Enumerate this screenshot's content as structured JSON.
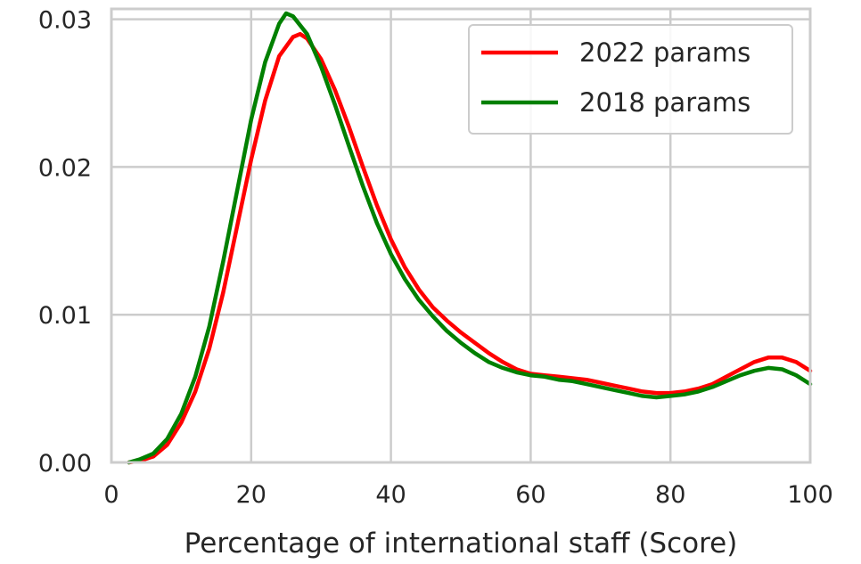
{
  "chart_data": {
    "type": "line",
    "title": "",
    "xlabel": "Percentage of international staff (Score)",
    "ylabel": "",
    "xlim": [
      0,
      100
    ],
    "ylim": [
      0,
      0.0307
    ],
    "xticks": [
      "0",
      "20",
      "40",
      "60",
      "80",
      "100"
    ],
    "yticks": [
      "0.00",
      "0.01",
      "0.02",
      "0.03"
    ],
    "grid": true,
    "legend_position": "top-right",
    "series": [
      {
        "name": "2022 params",
        "color": "#ff0000",
        "points": [
          [
            2.5,
            0.0
          ],
          [
            4,
            0.0001
          ],
          [
            6,
            0.0004
          ],
          [
            8,
            0.0012
          ],
          [
            10,
            0.0027
          ],
          [
            12,
            0.0048
          ],
          [
            14,
            0.0077
          ],
          [
            16,
            0.0115
          ],
          [
            18,
            0.016
          ],
          [
            20,
            0.0205
          ],
          [
            22,
            0.0245
          ],
          [
            24,
            0.0275
          ],
          [
            26,
            0.0288
          ],
          [
            27,
            0.029
          ],
          [
            28,
            0.0287
          ],
          [
            30,
            0.0273
          ],
          [
            32,
            0.0252
          ],
          [
            34,
            0.0227
          ],
          [
            36,
            0.02
          ],
          [
            38,
            0.0174
          ],
          [
            40,
            0.0151
          ],
          [
            42,
            0.0132
          ],
          [
            44,
            0.0117
          ],
          [
            46,
            0.0105
          ],
          [
            48,
            0.0096
          ],
          [
            50,
            0.0088
          ],
          [
            52,
            0.0081
          ],
          [
            54,
            0.0074
          ],
          [
            56,
            0.0068
          ],
          [
            58,
            0.0063
          ],
          [
            60,
            0.006
          ],
          [
            62,
            0.0059
          ],
          [
            64,
            0.0058
          ],
          [
            66,
            0.0057
          ],
          [
            68,
            0.0056
          ],
          [
            70,
            0.0054
          ],
          [
            72,
            0.0052
          ],
          [
            74,
            0.005
          ],
          [
            76,
            0.0048
          ],
          [
            78,
            0.0047
          ],
          [
            80,
            0.0047
          ],
          [
            82,
            0.0048
          ],
          [
            84,
            0.005
          ],
          [
            86,
            0.0053
          ],
          [
            88,
            0.0058
          ],
          [
            90,
            0.0063
          ],
          [
            92,
            0.0068
          ],
          [
            94,
            0.0071
          ],
          [
            96,
            0.0071
          ],
          [
            98,
            0.0068
          ],
          [
            100,
            0.0062
          ]
        ]
      },
      {
        "name": "2018 params",
        "color": "#008000",
        "points": [
          [
            2.5,
            0.0
          ],
          [
            4,
            0.0002
          ],
          [
            6,
            0.0006
          ],
          [
            8,
            0.0016
          ],
          [
            10,
            0.0033
          ],
          [
            12,
            0.0058
          ],
          [
            14,
            0.0092
          ],
          [
            16,
            0.0136
          ],
          [
            18,
            0.0184
          ],
          [
            20,
            0.0232
          ],
          [
            22,
            0.0271
          ],
          [
            24,
            0.0297
          ],
          [
            25,
            0.0304
          ],
          [
            26,
            0.0302
          ],
          [
            28,
            0.029
          ],
          [
            30,
            0.0268
          ],
          [
            32,
            0.0242
          ],
          [
            34,
            0.0214
          ],
          [
            36,
            0.0187
          ],
          [
            38,
            0.0162
          ],
          [
            40,
            0.0141
          ],
          [
            42,
            0.0124
          ],
          [
            44,
            0.011
          ],
          [
            46,
            0.0099
          ],
          [
            48,
            0.0089
          ],
          [
            50,
            0.0081
          ],
          [
            52,
            0.0074
          ],
          [
            54,
            0.0068
          ],
          [
            56,
            0.0064
          ],
          [
            58,
            0.0061
          ],
          [
            60,
            0.0059
          ],
          [
            62,
            0.0058
          ],
          [
            64,
            0.0056
          ],
          [
            66,
            0.0055
          ],
          [
            68,
            0.0053
          ],
          [
            70,
            0.0051
          ],
          [
            72,
            0.0049
          ],
          [
            74,
            0.0047
          ],
          [
            76,
            0.0045
          ],
          [
            78,
            0.0044
          ],
          [
            80,
            0.0045
          ],
          [
            82,
            0.0046
          ],
          [
            84,
            0.0048
          ],
          [
            86,
            0.0051
          ],
          [
            88,
            0.0055
          ],
          [
            90,
            0.0059
          ],
          [
            92,
            0.0062
          ],
          [
            94,
            0.0064
          ],
          [
            96,
            0.0063
          ],
          [
            98,
            0.0059
          ],
          [
            100,
            0.0053
          ]
        ]
      }
    ]
  }
}
